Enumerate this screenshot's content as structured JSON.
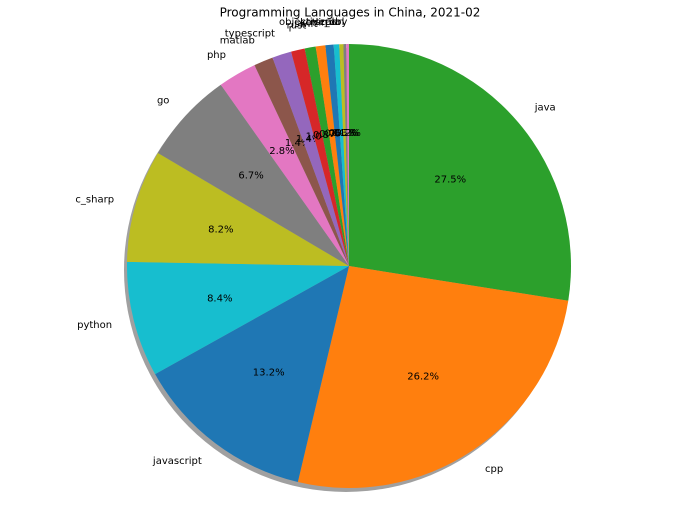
{
  "chart_data": {
    "type": "pie",
    "title": "Programming Languages in China, 2021-02",
    "categories": [
      "java",
      "cpp",
      "javascript",
      "python",
      "c_sharp",
      "go",
      "php",
      "matlab",
      "typescript",
      "r",
      "rust",
      "swift",
      "kotlin",
      "objective_c",
      "scala",
      "perl",
      "ruby"
    ],
    "values": [
      27.5,
      26.2,
      13.2,
      8.4,
      8.2,
      6.7,
      2.8,
      1.4,
      1.4,
      1.0,
      0.8,
      0.7,
      0.6,
      0.4,
      0.3,
      0.2,
      0.2
    ],
    "value_labels": [
      "27.5%",
      "26.2%",
      "13.2%",
      "8.4%",
      "8.2%",
      "6.7%",
      "2.8%",
      "1.4%",
      "1.4%",
      "1.0%",
      "0.8%",
      "0.7%",
      "0.6%",
      "0.4%",
      "0.3%",
      "0.2%",
      "0.2%"
    ],
    "colors": [
      "#2ca02c",
      "#ff7f0e",
      "#1f77b4",
      "#17becf",
      "#bcbd22",
      "#7f7f7f",
      "#e377c2",
      "#8c564b",
      "#9467bd",
      "#d62728",
      "#2ca02c",
      "#ff7f0e",
      "#1f77b4",
      "#17becf",
      "#bcbd22",
      "#7f7f7f",
      "#e377c2"
    ],
    "shadow": true
  }
}
